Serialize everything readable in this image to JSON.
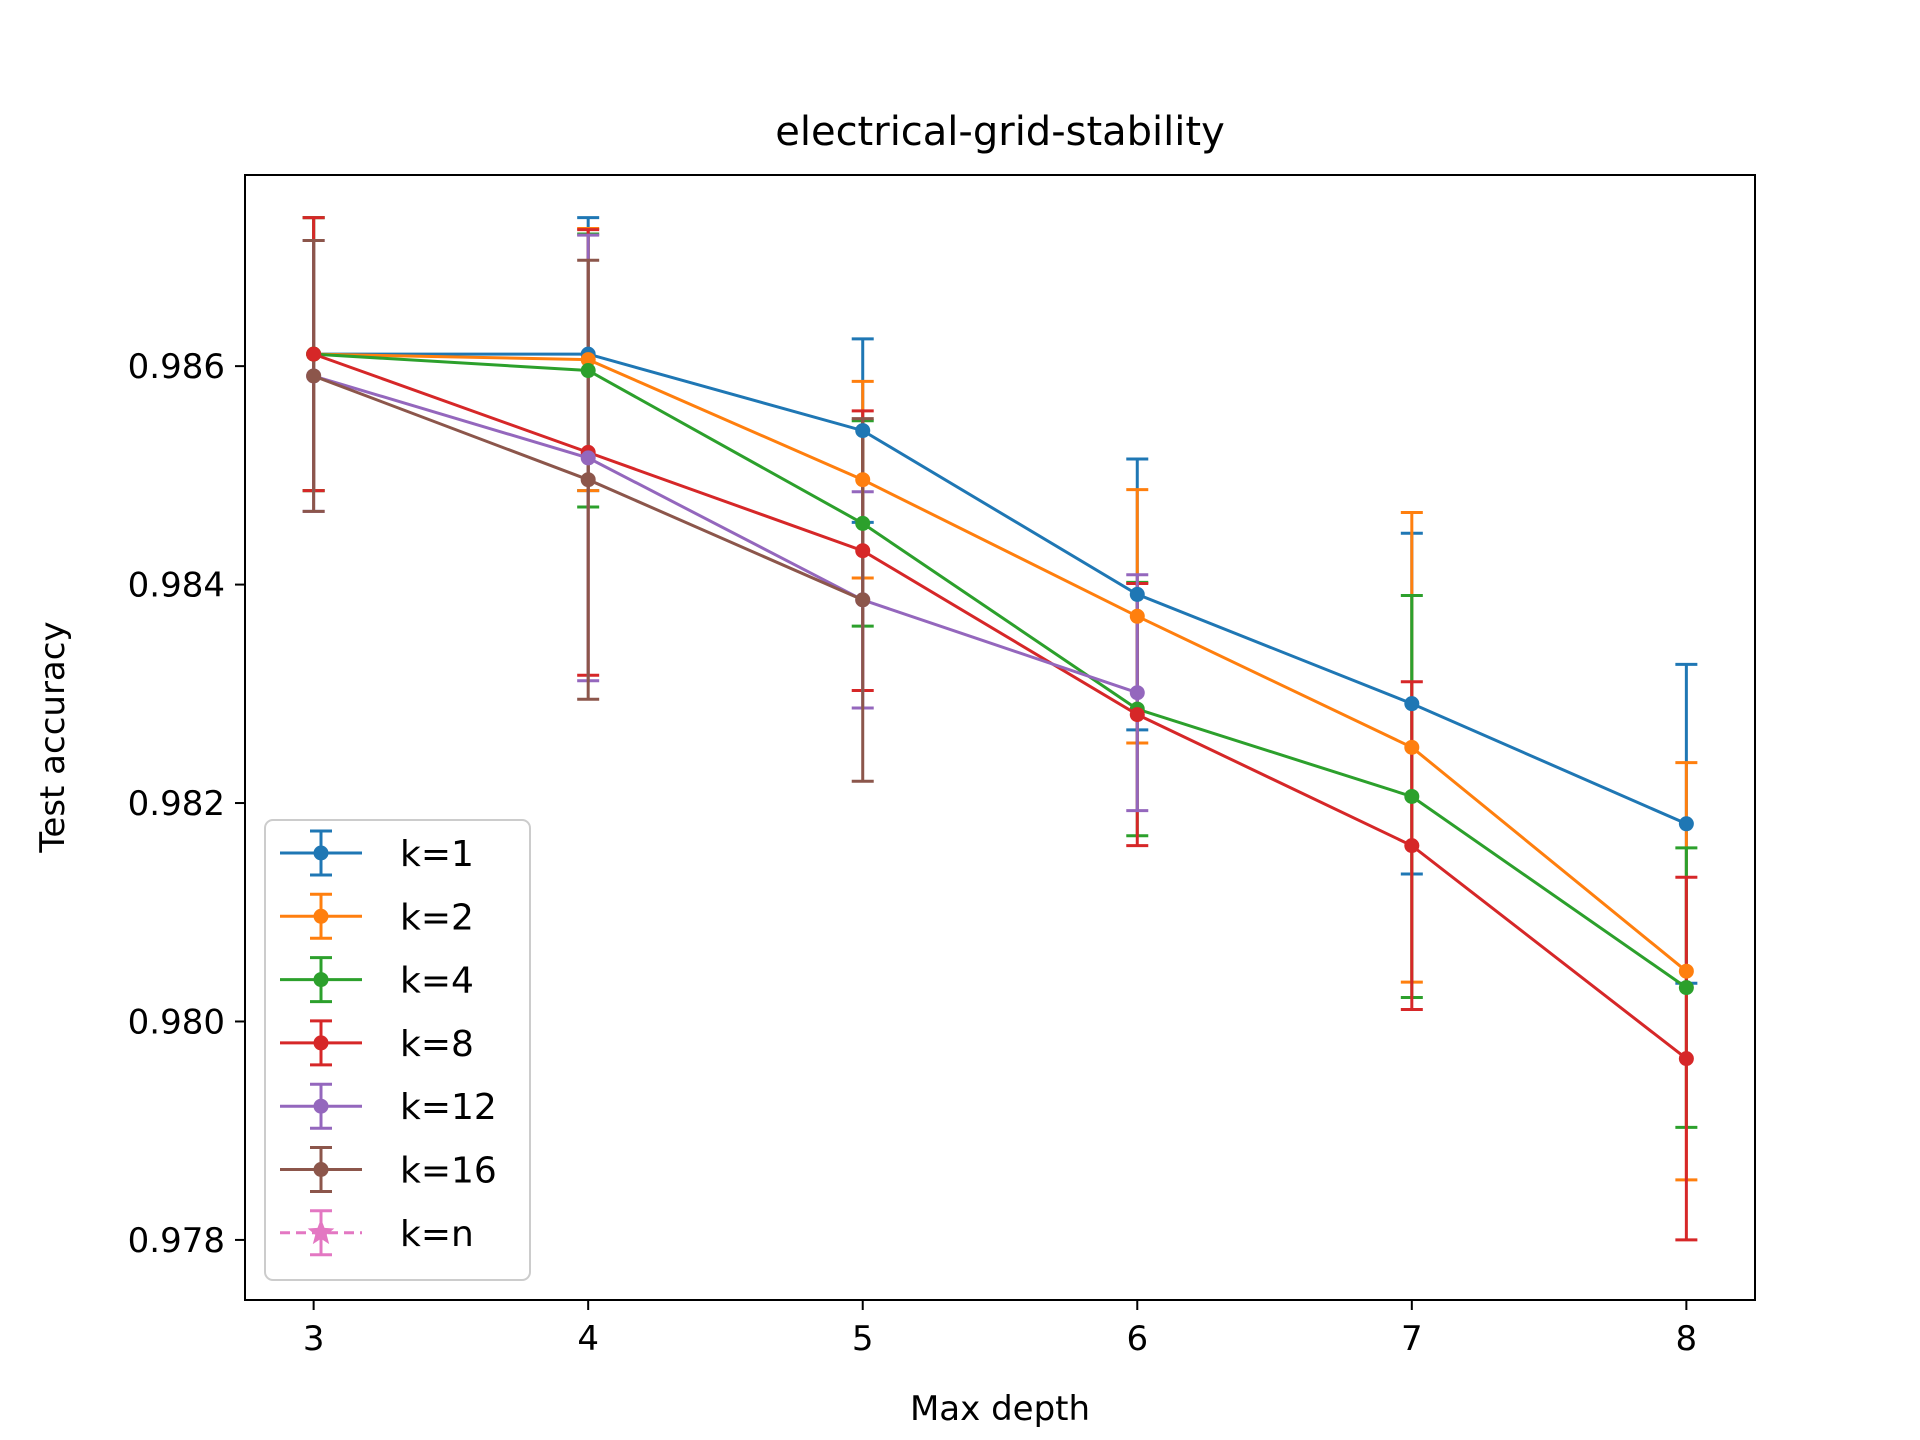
{
  "chart_data": {
    "type": "line",
    "title": "electrical-grid-stability",
    "xlabel": "Max depth",
    "ylabel": "Test accuracy",
    "x": [
      3,
      4,
      5,
      6,
      7,
      8
    ],
    "xlim": [
      2.75,
      8.25
    ],
    "ylim": [
      0.97745,
      0.98775
    ],
    "yticks": [
      0.978,
      0.98,
      0.982,
      0.984,
      0.986
    ],
    "ytick_labels": [
      "0.978",
      "0.980",
      "0.982",
      "0.984",
      "0.986"
    ],
    "xticks": [
      3,
      4,
      5,
      6,
      7,
      8
    ],
    "xtick_labels": [
      "3",
      "4",
      "5",
      "6",
      "7",
      "8"
    ],
    "grid": false,
    "legend_position": "lower-left",
    "series": [
      {
        "name": "k=1",
        "color": "#1f77b4",
        "marker": "circle",
        "linestyle": "solid",
        "values": [
          0.98611,
          0.98611,
          0.98541,
          0.98391,
          0.98291,
          0.98181
        ],
        "errors": [
          0.00125,
          0.00125,
          0.00084,
          0.00124,
          0.00156,
          0.00146
        ]
      },
      {
        "name": "k=2",
        "color": "#ff7f0e",
        "marker": "circle",
        "linestyle": "solid",
        "values": [
          0.98611,
          0.98606,
          0.98496,
          0.98371,
          0.98251,
          0.98046
        ],
        "errors": [
          0.00125,
          0.0012,
          0.0009,
          0.00116,
          0.00215,
          0.00191
        ]
      },
      {
        "name": "k=4",
        "color": "#2ca02c",
        "marker": "circle",
        "linestyle": "solid",
        "values": [
          0.98611,
          0.98596,
          0.98456,
          0.98286,
          0.98206,
          0.98031
        ],
        "errors": [
          0.00125,
          0.00125,
          0.00094,
          0.00116,
          0.00184,
          0.00128
        ]
      },
      {
        "name": "k=8",
        "color": "#d62728",
        "marker": "circle",
        "linestyle": "solid",
        "values": [
          0.98611,
          0.98521,
          0.98431,
          0.98281,
          0.98161,
          0.97966
        ],
        "errors": [
          0.00125,
          0.00204,
          0.00128,
          0.0012,
          0.0015,
          0.00166
        ]
      },
      {
        "name": "k=12",
        "color": "#9467bd",
        "marker": "circle",
        "linestyle": "solid",
        "values": [
          0.98591,
          0.98516,
          0.98386,
          0.98301,
          null,
          null
        ],
        "errors": [
          0.00124,
          0.00204,
          0.00099,
          0.00108,
          null,
          null
        ]
      },
      {
        "name": "k=16",
        "color": "#8c564b",
        "marker": "circle",
        "linestyle": "solid",
        "values": [
          0.98591,
          0.98496,
          0.98386,
          null,
          null,
          null
        ],
        "errors": [
          0.00124,
          0.00201,
          0.00166,
          null,
          null,
          null
        ]
      },
      {
        "name": "k=n",
        "color": "#e377c2",
        "marker": "star",
        "linestyle": "dashed",
        "values": [
          null,
          null,
          null,
          null,
          null,
          null
        ],
        "errors": [
          null,
          null,
          null,
          null,
          null,
          null
        ]
      }
    ]
  }
}
